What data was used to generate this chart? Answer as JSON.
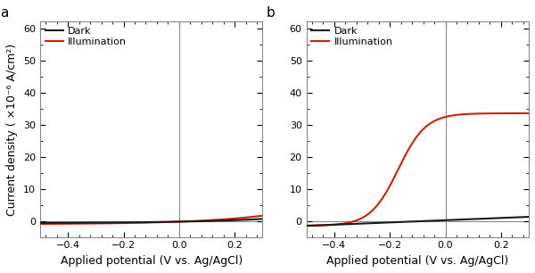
{
  "xlim": [
    -0.5,
    0.3
  ],
  "xticks": [
    -0.4,
    -0.2,
    0.0,
    0.2
  ],
  "xlabel": "Applied potential (V vs. Ag/AgCl)",
  "ylabel": "Current density ( ×10⁻⁶ A/cm²)",
  "ylim": [
    -5,
    62
  ],
  "yticks": [
    0,
    10,
    20,
    30,
    40,
    50,
    60
  ],
  "dark_color": "#1a1a1a",
  "illum_color": "#cc2200",
  "vline_color": "#888888",
  "hline_color": "#888888",
  "legend_dark": "Dark",
  "legend_illum": "Illumination",
  "panel_a_label": "a",
  "panel_b_label": "b",
  "bg_color": "#ffffff",
  "spine_color": "#888888",
  "linewidth": 1.5,
  "font_size_ticks": 8,
  "font_size_label": 9,
  "font_size_panel": 11
}
